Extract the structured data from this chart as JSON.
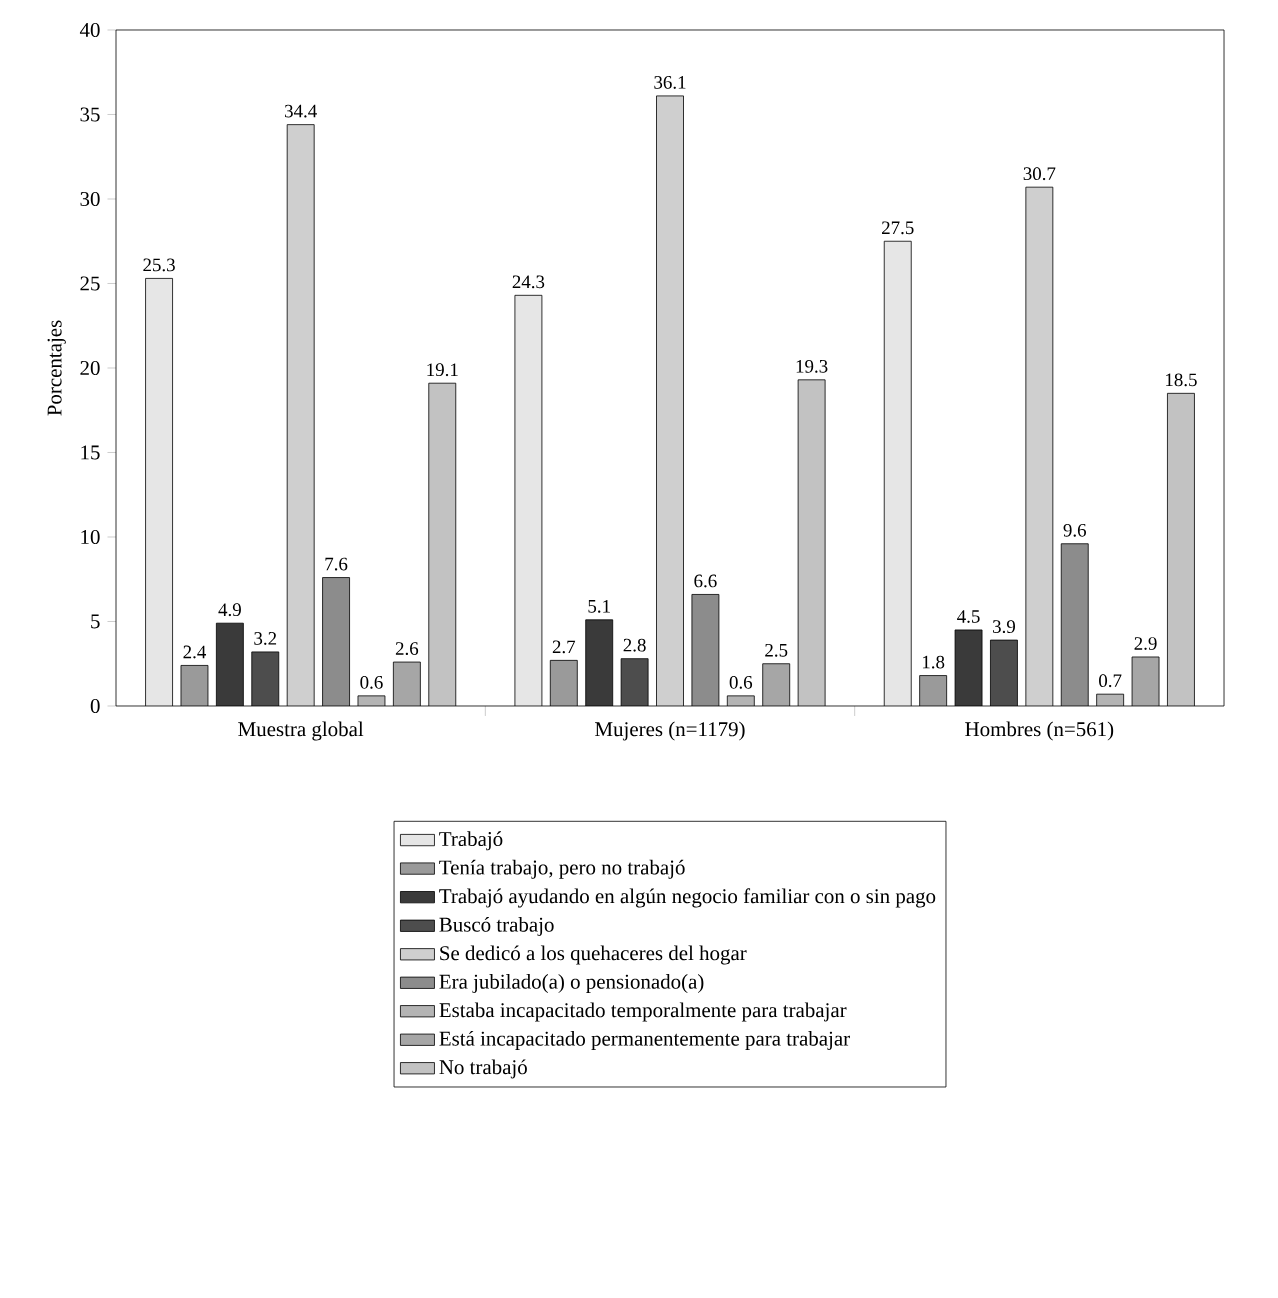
{
  "chart_data": {
    "type": "bar",
    "ylabel": "Porcentajes",
    "categories": [
      "Muestra global",
      "Mujeres (n=1179)",
      "Hombres (n=561)"
    ],
    "series": [
      {
        "name": "Trabajó",
        "color": "#e6e6e6",
        "values": [
          25.3,
          24.3,
          27.5
        ]
      },
      {
        "name": "Tenía trabajo, pero no trabajó",
        "color": "#9a9a9a",
        "values": [
          2.4,
          2.7,
          1.8
        ]
      },
      {
        "name": "Trabajó ayudando en algún negocio familiar con o sin pago",
        "color": "#3a3a3a",
        "values": [
          4.9,
          5.1,
          4.5
        ]
      },
      {
        "name": "Buscó trabajo",
        "color": "#4d4d4d",
        "values": [
          3.2,
          2.8,
          3.9
        ]
      },
      {
        "name": "Se dedicó a los quehaceres del hogar",
        "color": "#cfcfcf",
        "values": [
          34.4,
          36.1,
          30.7
        ]
      },
      {
        "name": "Era jubilado(a) o pensionado(a)",
        "color": "#8c8c8c",
        "values": [
          7.6,
          6.6,
          9.6
        ]
      },
      {
        "name": "Estaba incapacitado temporalmente para trabajar",
        "color": "#b4b4b4",
        "values": [
          0.6,
          0.6,
          0.7
        ]
      },
      {
        "name": "Está incapacitado permanentemente para trabajar",
        "color": "#a6a6a6",
        "values": [
          2.6,
          2.5,
          2.9
        ]
      },
      {
        "name": "No trabajó",
        "color": "#c2c2c2",
        "values": [
          19.1,
          19.3,
          18.5
        ]
      }
    ],
    "ylim": [
      0,
      40
    ],
    "yticks": [
      0,
      5,
      10,
      15,
      20,
      25,
      30,
      35,
      40
    ],
    "data_labels": true,
    "legend": "bottom",
    "grid": false
  }
}
